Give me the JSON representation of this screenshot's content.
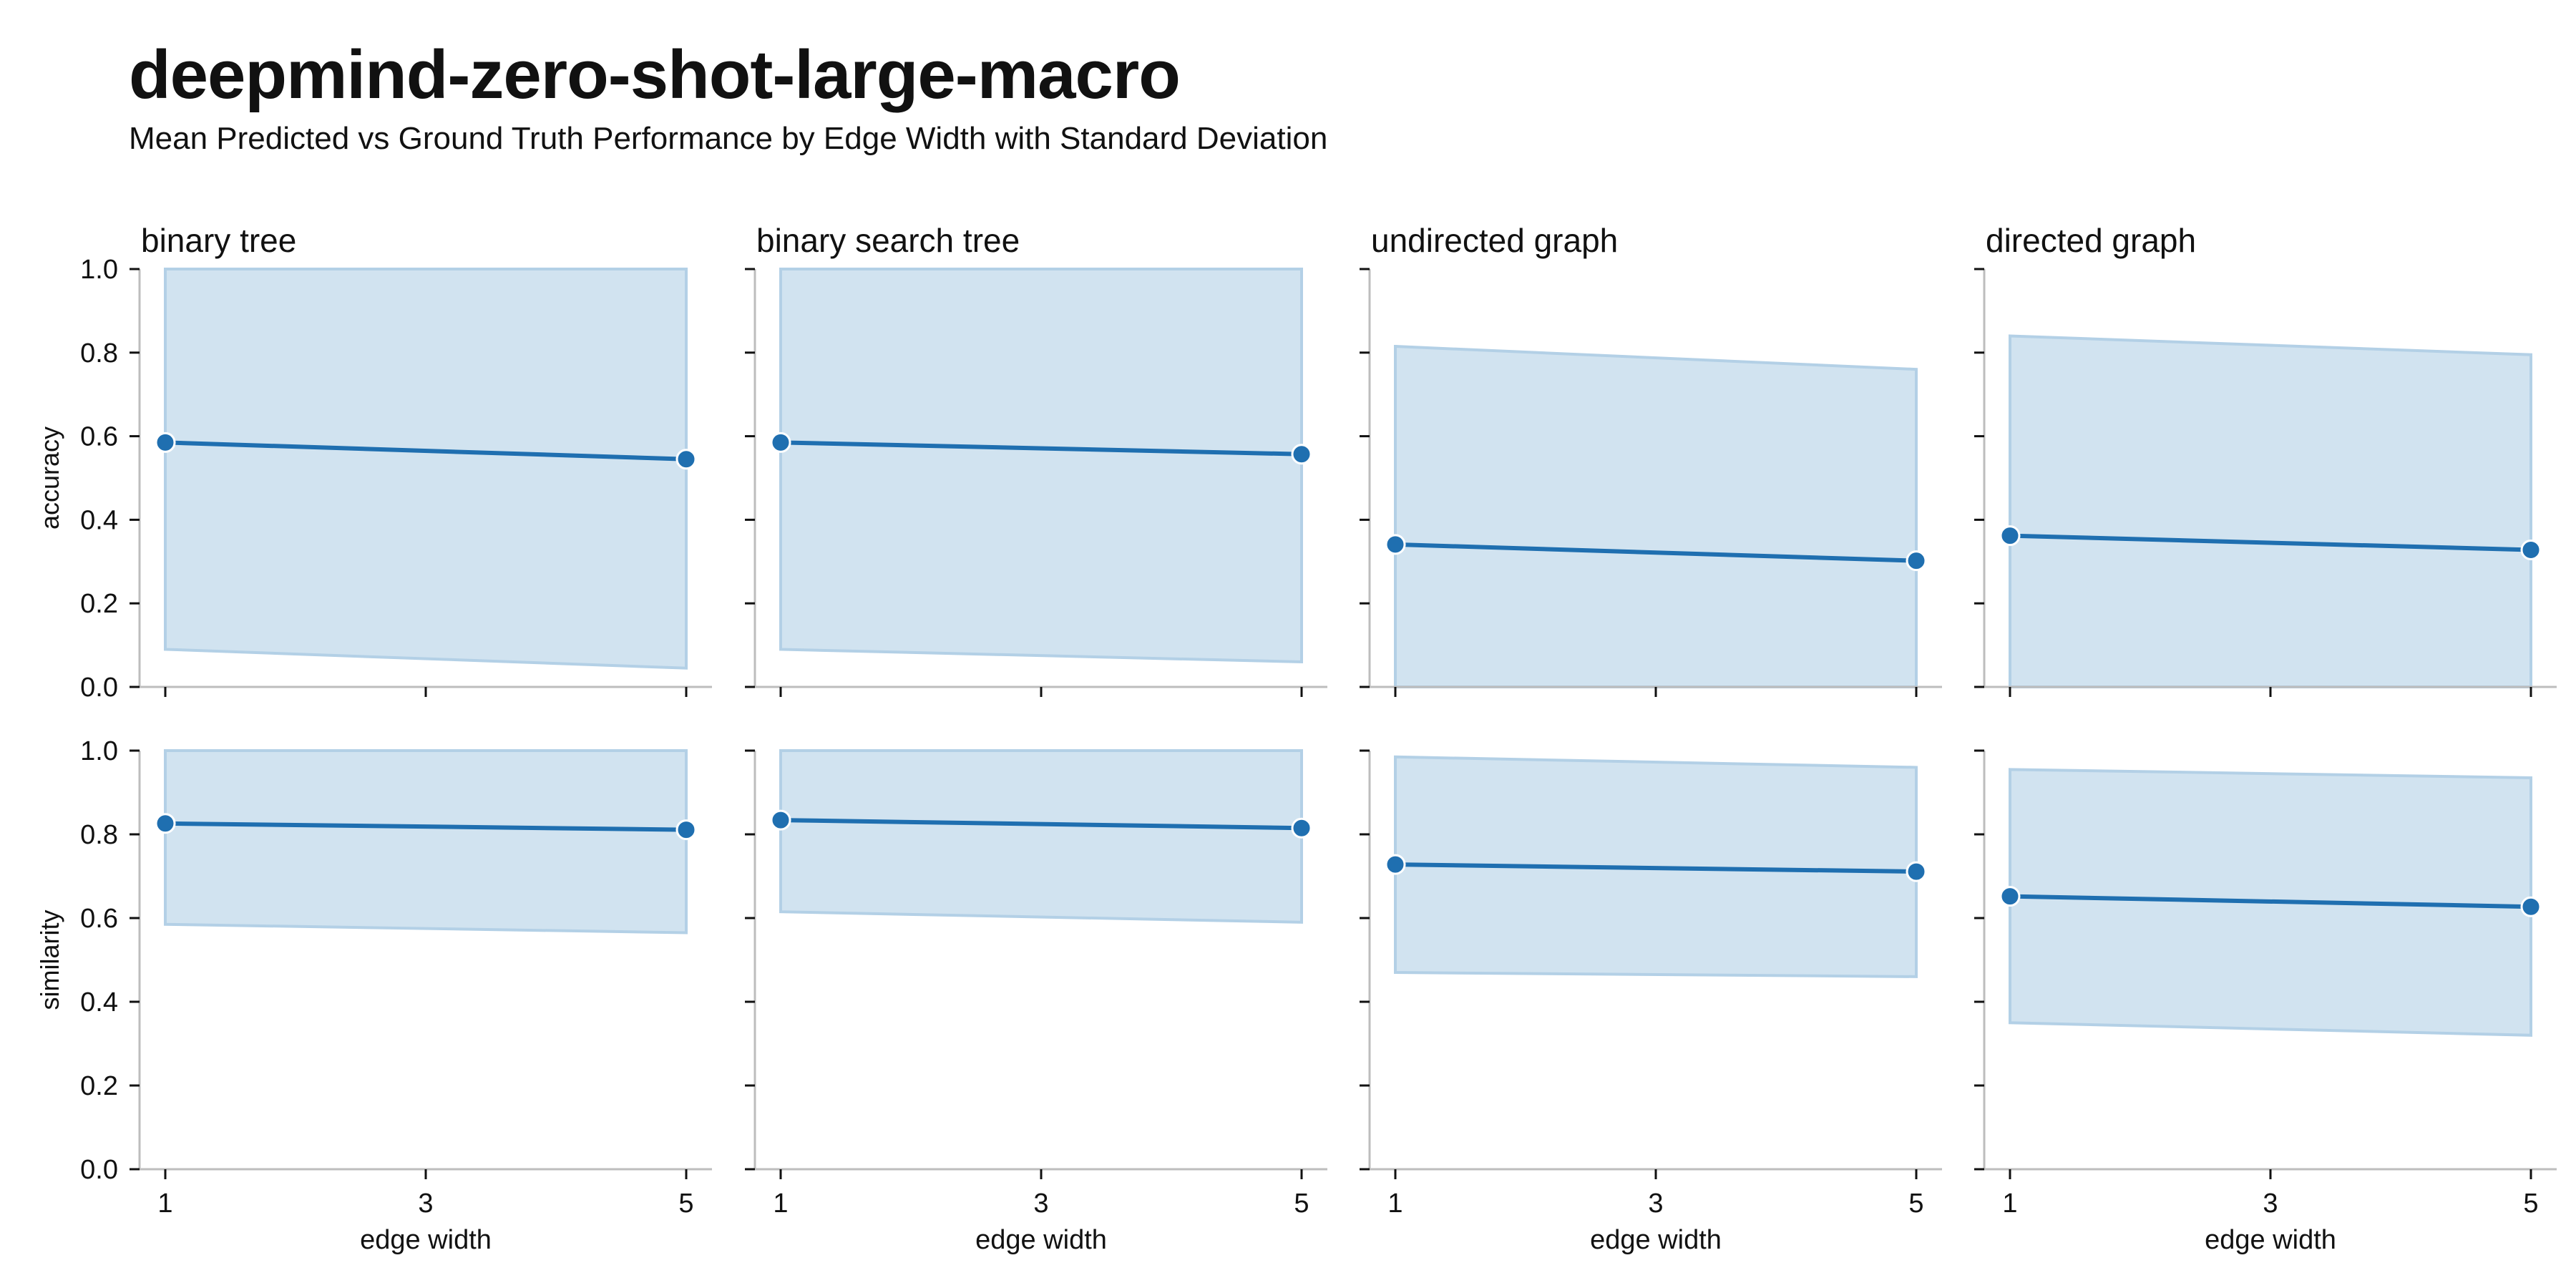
{
  "title": "deepmind-zero-shot-large-macro",
  "subtitle": "Mean Predicted vs Ground Truth Performance by Edge Width with Standard Deviation",
  "colors": {
    "line": "#1f6fb0",
    "band": "#b3d0e6",
    "axis": "#bdbdbd"
  },
  "chart_data": {
    "type": "line",
    "x_label": "edge width",
    "x_ticks": [
      1,
      3,
      5
    ],
    "x_range": [
      1,
      5
    ],
    "y_ticks": [
      "0.0",
      "0.2",
      "0.4",
      "0.6",
      "0.8",
      "1.0"
    ],
    "y_range": [
      0,
      1
    ],
    "rows": [
      {
        "metric": "accuracy",
        "ylabel": "accuracy"
      },
      {
        "metric": "similarity",
        "ylabel": "similarity"
      }
    ],
    "columns": [
      "binary tree",
      "binary search tree",
      "undirected graph",
      "directed graph"
    ],
    "panels": [
      {
        "column": "binary tree",
        "metric": "accuracy",
        "x": [
          1,
          5
        ],
        "mean": [
          0.585,
          0.545
        ],
        "lower": [
          0.09,
          0.045
        ],
        "upper": [
          1.0,
          1.0
        ]
      },
      {
        "column": "binary search tree",
        "metric": "accuracy",
        "x": [
          1,
          5
        ],
        "mean": [
          0.585,
          0.557
        ],
        "lower": [
          0.09,
          0.06
        ],
        "upper": [
          1.0,
          1.0
        ]
      },
      {
        "column": "undirected graph",
        "metric": "accuracy",
        "x": [
          1,
          5
        ],
        "mean": [
          0.341,
          0.302
        ],
        "lower": [
          0.0,
          0.0
        ],
        "upper": [
          0.815,
          0.76
        ]
      },
      {
        "column": "directed graph",
        "metric": "accuracy",
        "x": [
          1,
          5
        ],
        "mean": [
          0.362,
          0.328
        ],
        "lower": [
          0.0,
          0.0
        ],
        "upper": [
          0.84,
          0.795
        ]
      },
      {
        "column": "binary tree",
        "metric": "similarity",
        "x": [
          1,
          5
        ],
        "mean": [
          0.826,
          0.811
        ],
        "lower": [
          0.585,
          0.565
        ],
        "upper": [
          1.0,
          1.0
        ]
      },
      {
        "column": "binary search tree",
        "metric": "similarity",
        "x": [
          1,
          5
        ],
        "mean": [
          0.834,
          0.815
        ],
        "lower": [
          0.615,
          0.59
        ],
        "upper": [
          1.0,
          1.0
        ]
      },
      {
        "column": "undirected graph",
        "metric": "similarity",
        "x": [
          1,
          5
        ],
        "mean": [
          0.728,
          0.711
        ],
        "lower": [
          0.47,
          0.46
        ],
        "upper": [
          0.985,
          0.96
        ]
      },
      {
        "column": "directed graph",
        "metric": "similarity",
        "x": [
          1,
          5
        ],
        "mean": [
          0.652,
          0.627
        ],
        "lower": [
          0.35,
          0.32
        ],
        "upper": [
          0.955,
          0.935
        ]
      }
    ]
  }
}
